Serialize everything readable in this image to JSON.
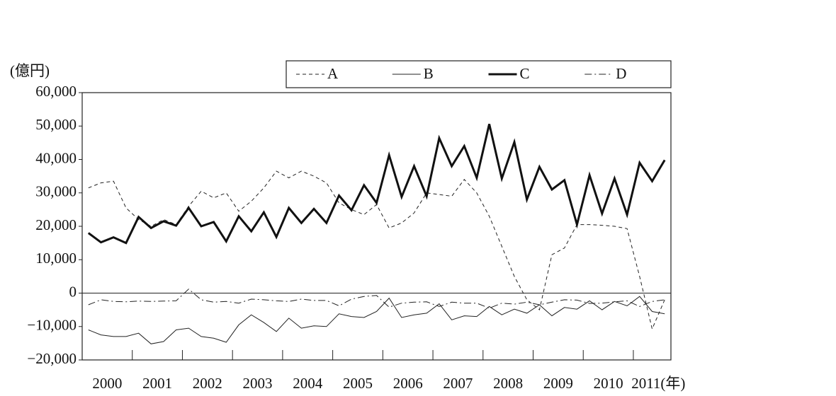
{
  "chart_data": {
    "type": "line",
    "y_label": "(億円)",
    "x": [
      2000.125,
      2000.375,
      2000.625,
      2000.875,
      2001.125,
      2001.375,
      2001.625,
      2001.875,
      2002.125,
      2002.375,
      2002.625,
      2002.875,
      2003.125,
      2003.375,
      2003.625,
      2003.875,
      2004.125,
      2004.375,
      2004.625,
      2004.875,
      2005.125,
      2005.375,
      2005.625,
      2005.875,
      2006.125,
      2006.375,
      2006.625,
      2006.875,
      2007.125,
      2007.375,
      2007.625,
      2007.875,
      2008.125,
      2008.375,
      2008.625,
      2008.875,
      2009.125,
      2009.375,
      2009.625,
      2009.875,
      2010.125,
      2010.375,
      2010.625,
      2010.875,
      2011.125,
      2011.375,
      2011.625
    ],
    "series": [
      {
        "name": "A",
        "color": "#222222",
        "dash": "dashed",
        "line_width": 1,
        "values": [
          31500,
          33000,
          33500,
          25500,
          22000,
          20000,
          22000,
          20500,
          26000,
          30500,
          28500,
          30000,
          24500,
          27500,
          31500,
          36500,
          34500,
          36500,
          35000,
          33000,
          27000,
          25000,
          23500,
          26500,
          19500,
          21000,
          24000,
          30000,
          29500,
          29000,
          34000,
          30000,
          23000,
          14000,
          5000,
          -2000,
          -5000,
          11500,
          13500,
          20500,
          20500,
          20300,
          20000,
          19300,
          5000,
          -10700,
          -2000
        ]
      },
      {
        "name": "B",
        "color": "#222222",
        "dash": "solid",
        "line_width": 1,
        "values": [
          -11000,
          -12500,
          -13000,
          -13000,
          -12000,
          -15200,
          -14500,
          -11000,
          -10500,
          -13000,
          -13500,
          -14700,
          -9500,
          -6500,
          -8800,
          -11500,
          -7500,
          -10500,
          -9800,
          -10000,
          -6200,
          -7000,
          -7300,
          -5500,
          -1500,
          -7300,
          -6500,
          -6000,
          -3200,
          -8000,
          -6800,
          -7000,
          -4000,
          -6500,
          -4800,
          -6000,
          -3500,
          -6800,
          -4300,
          -4800,
          -2300,
          -5000,
          -2500,
          -3800,
          -1000,
          -5500,
          -6200
        ]
      },
      {
        "name": "C",
        "color": "#111111",
        "dash": "solid",
        "line_width": 3,
        "values": [
          18000,
          15200,
          16700,
          15000,
          22800,
          19500,
          21500,
          20200,
          25500,
          20000,
          21300,
          15500,
          23000,
          18500,
          24200,
          16800,
          25500,
          21000,
          25200,
          21000,
          29200,
          24800,
          32300,
          27000,
          41300,
          28800,
          38000,
          29000,
          46400,
          38000,
          44000,
          34500,
          50600,
          34300,
          45200,
          28000,
          37800,
          31000,
          33800,
          20500,
          35300,
          23800,
          34300,
          23500,
          39000,
          33500,
          39800
        ]
      },
      {
        "name": "D",
        "color": "#222222",
        "dash": "dashdot",
        "line_width": 1,
        "values": [
          -3500,
          -2000,
          -2500,
          -2600,
          -2400,
          -2500,
          -2400,
          -2300,
          1200,
          -2000,
          -2700,
          -2500,
          -3000,
          -1800,
          -2000,
          -2300,
          -2500,
          -1800,
          -2200,
          -2200,
          -3800,
          -1800,
          -1000,
          -700,
          -4200,
          -3000,
          -2700,
          -2600,
          -4000,
          -2700,
          -3000,
          -3000,
          -4500,
          -3000,
          -3300,
          -2700,
          -3500,
          -2700,
          -2000,
          -2100,
          -3100,
          -3000,
          -2600,
          -2300,
          -4000,
          -2500,
          -2000
        ]
      }
    ],
    "xlim": [
      2000,
      2011.75
    ],
    "xticks": [
      {
        "value": 2000.5,
        "label": "2000"
      },
      {
        "value": 2001.5,
        "label": "2001"
      },
      {
        "value": 2002.5,
        "label": "2002"
      },
      {
        "value": 2003.5,
        "label": "2003"
      },
      {
        "value": 2004.5,
        "label": "2004"
      },
      {
        "value": 2005.5,
        "label": "2005"
      },
      {
        "value": 2006.5,
        "label": "2006"
      },
      {
        "value": 2007.5,
        "label": "2007"
      },
      {
        "value": 2008.5,
        "label": "2008"
      },
      {
        "value": 2009.5,
        "label": "2009"
      },
      {
        "value": 2010.5,
        "label": "2010"
      },
      {
        "value": 2011.5,
        "label": "2011(年)"
      }
    ],
    "ylim": [
      -20000,
      60000
    ],
    "yticks": [
      {
        "value": -20000,
        "label": "−20,000"
      },
      {
        "value": -10000,
        "label": "−10,000"
      },
      0,
      {
        "value": 10000,
        "label": "10,000"
      },
      {
        "value": 20000,
        "label": "20,000"
      },
      {
        "value": 30000,
        "label": "30,000"
      },
      {
        "value": 40000,
        "label": "40,000"
      },
      {
        "value": 50000,
        "label": "50,000"
      },
      {
        "value": 60000,
        "label": "60,000"
      }
    ],
    "zero_line": true,
    "legend": "top"
  }
}
